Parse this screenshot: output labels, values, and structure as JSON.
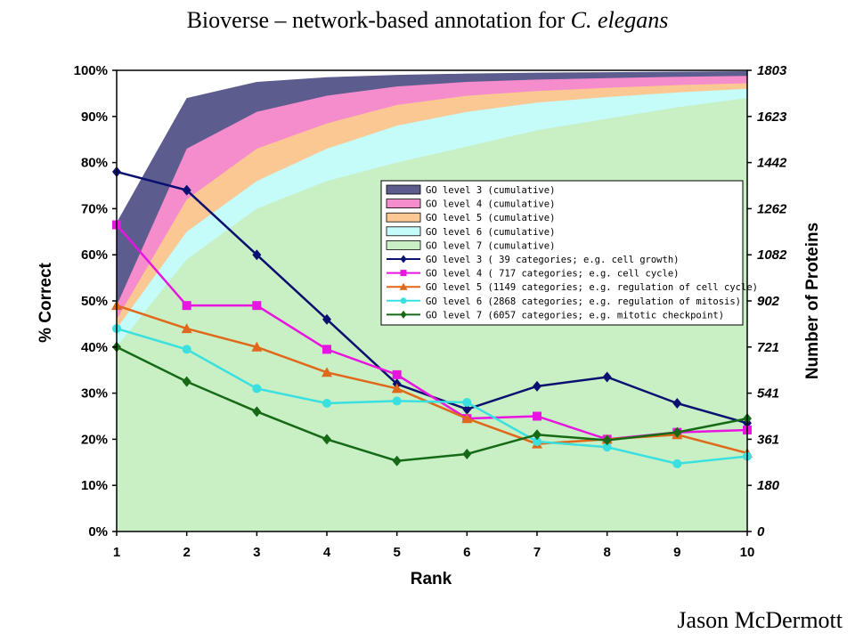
{
  "slide": {
    "title_main": "Bioverse – network-based annotation for ",
    "title_italic": "C. elegans",
    "author": "Jason McDermott"
  },
  "chart_data": {
    "type": "area",
    "xlabel": "Rank",
    "ylabel": "% Correct",
    "y2label": "Number of Proteins",
    "x": [
      1,
      2,
      3,
      4,
      5,
      6,
      7,
      8,
      9,
      10
    ],
    "ylim": [
      0,
      100
    ],
    "y_ticks": [
      "0%",
      "10%",
      "20%",
      "30%",
      "40%",
      "50%",
      "60%",
      "70%",
      "80%",
      "90%",
      "100%"
    ],
    "y2_ticks": [
      "0",
      "180",
      "361",
      "541",
      "721",
      "902",
      "1082",
      "1262",
      "1442",
      "1623",
      "1803"
    ],
    "y2lim": [
      0,
      1803
    ],
    "grid": false,
    "legend_position": "center-right",
    "area_series": [
      {
        "name": "GO level 3 (cumulative)",
        "color": "#5c5c8e",
        "values": [
          67,
          94,
          97.5,
          98.5,
          99,
          99.3,
          99.5,
          99.6,
          99.7,
          99.8
        ]
      },
      {
        "name": "GO level 4 (cumulative)",
        "color": "#f58ccb",
        "values": [
          49,
          83,
          91,
          94.5,
          96.5,
          97.5,
          98,
          98.3,
          98.6,
          98.8
        ]
      },
      {
        "name": "GO level 5 (cumulative)",
        "color": "#fbc894",
        "values": [
          46,
          72,
          83,
          88.5,
          92.5,
          94.5,
          95.5,
          96.2,
          96.8,
          97.2
        ]
      },
      {
        "name": "GO level 6 (cumulative)",
        "color": "#c5fbf8",
        "values": [
          44,
          65,
          76,
          83,
          88,
          91,
          93,
          94.2,
          95.2,
          96
        ]
      },
      {
        "name": "GO level 7 (cumulative)",
        "color": "#c8f0c4",
        "values": [
          40,
          59,
          70,
          76,
          80,
          83.5,
          87,
          89.5,
          92,
          94
        ]
      }
    ],
    "line_series": [
      {
        "name": "GO level 3 (   39 categories; e.g. cell growth)",
        "color": "#0a1070",
        "marker": "diamond",
        "values": [
          78,
          74,
          60,
          46,
          32,
          26.5,
          31.5,
          33.5,
          27.8,
          23.5
        ]
      },
      {
        "name": "GO level 4 ( 717 categories; e.g. cell cycle)",
        "color": "#e815e0",
        "marker": "square",
        "values": [
          66.5,
          49,
          49,
          39.5,
          34,
          24.5,
          25,
          20,
          21.5,
          22
        ]
      },
      {
        "name": "GO level 5 (1149 categories; e.g. regulation of cell cycle)",
        "color": "#e0681a",
        "marker": "triangle",
        "values": [
          49,
          44,
          40,
          34.5,
          31,
          24.5,
          19,
          20,
          21,
          17
        ]
      },
      {
        "name": "GO level 6 (2868 categories; e.g. regulation of mitosis)",
        "color": "#3ae0e0",
        "marker": "circle",
        "values": [
          44,
          39.5,
          31,
          27.8,
          28.3,
          28,
          19.5,
          18.3,
          14.7,
          16.3
        ]
      },
      {
        "name": "GO level 7 (6057 categories; e.g. mitotic checkpoint)",
        "color": "#166a16",
        "marker": "diamond",
        "values": [
          40,
          32.5,
          26,
          20,
          15.3,
          16.8,
          21,
          19.8,
          21.5,
          24.5
        ]
      }
    ]
  }
}
